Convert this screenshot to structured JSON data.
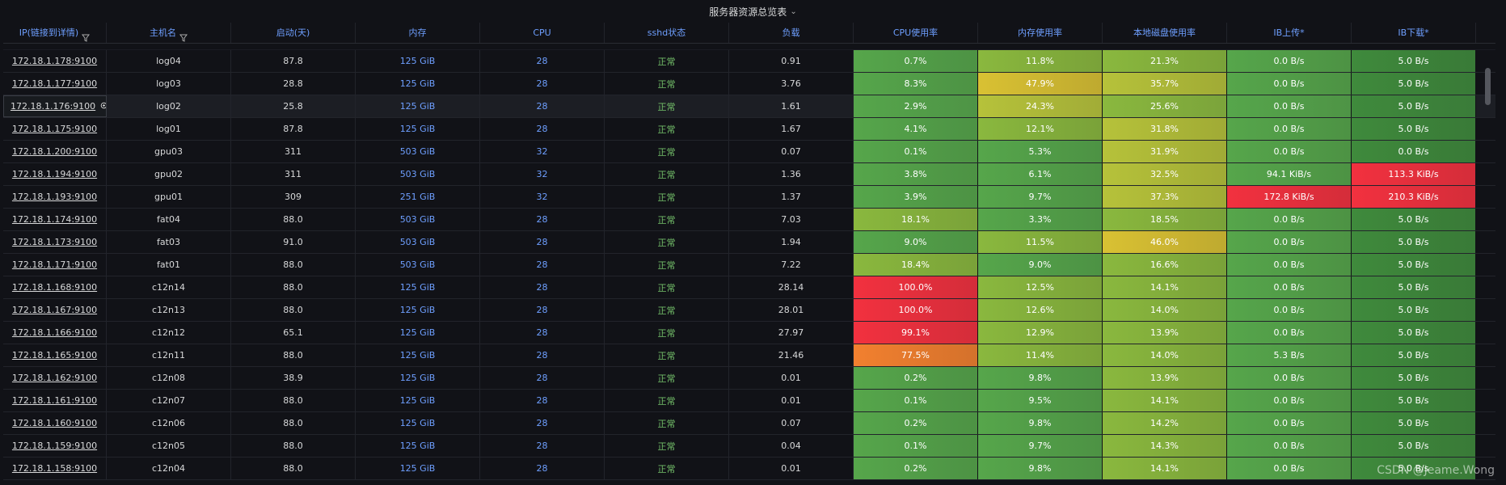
{
  "panel": {
    "title": "服务器资源总览表",
    "watermark": "CSDN @Jeame.Wong"
  },
  "columns": [
    "IP(链接到详情)",
    "主机名",
    "启动(天)",
    "内存",
    "CPU",
    "sshd状态",
    "负载",
    "CPU使用率",
    "内存使用率",
    "本地磁盘使用率",
    "IB上传*",
    "IB下载*"
  ],
  "rows": [
    [
      "172.18.1.178:9100",
      "log04",
      "87.8",
      "125 GiB",
      "28",
      "正常",
      "0.91",
      "0.7%",
      "11.8%",
      "21.3%",
      "0.0 B/s",
      "5.0 B/s"
    ],
    [
      "172.18.1.177:9100",
      "log03",
      "28.8",
      "125 GiB",
      "28",
      "正常",
      "3.76",
      "8.3%",
      "47.9%",
      "35.7%",
      "0.0 B/s",
      "5.0 B/s"
    ],
    [
      "172.18.1.176:9100",
      "log02",
      "25.8",
      "125 GiB",
      "28",
      "正常",
      "1.61",
      "2.9%",
      "24.3%",
      "25.6%",
      "0.0 B/s",
      "5.0 B/s"
    ],
    [
      "172.18.1.175:9100",
      "log01",
      "87.8",
      "125 GiB",
      "28",
      "正常",
      "1.67",
      "4.1%",
      "12.1%",
      "31.8%",
      "0.0 B/s",
      "5.0 B/s"
    ],
    [
      "172.18.1.200:9100",
      "gpu03",
      "311",
      "503 GiB",
      "32",
      "正常",
      "0.07",
      "0.1%",
      "5.3%",
      "31.9%",
      "0.0 B/s",
      "0.0 B/s"
    ],
    [
      "172.18.1.194:9100",
      "gpu02",
      "311",
      "503 GiB",
      "32",
      "正常",
      "1.36",
      "3.8%",
      "6.1%",
      "32.5%",
      "94.1 KiB/s",
      "113.3 KiB/s"
    ],
    [
      "172.18.1.193:9100",
      "gpu01",
      "309",
      "251 GiB",
      "32",
      "正常",
      "1.37",
      "3.9%",
      "9.7%",
      "37.3%",
      "172.8 KiB/s",
      "210.3 KiB/s"
    ],
    [
      "172.18.1.174:9100",
      "fat04",
      "88.0",
      "503 GiB",
      "28",
      "正常",
      "7.03",
      "18.1%",
      "3.3%",
      "18.5%",
      "0.0 B/s",
      "5.0 B/s"
    ],
    [
      "172.18.1.173:9100",
      "fat03",
      "91.0",
      "503 GiB",
      "28",
      "正常",
      "1.94",
      "9.0%",
      "11.5%",
      "46.0%",
      "0.0 B/s",
      "5.0 B/s"
    ],
    [
      "172.18.1.171:9100",
      "fat01",
      "88.0",
      "503 GiB",
      "28",
      "正常",
      "7.22",
      "18.4%",
      "9.0%",
      "16.6%",
      "0.0 B/s",
      "5.0 B/s"
    ],
    [
      "172.18.1.168:9100",
      "c12n14",
      "88.0",
      "125 GiB",
      "28",
      "正常",
      "28.14",
      "100.0%",
      "12.5%",
      "14.1%",
      "0.0 B/s",
      "5.0 B/s"
    ],
    [
      "172.18.1.167:9100",
      "c12n13",
      "88.0",
      "125 GiB",
      "28",
      "正常",
      "28.01",
      "100.0%",
      "12.6%",
      "14.0%",
      "0.0 B/s",
      "5.0 B/s"
    ],
    [
      "172.18.1.166:9100",
      "c12n12",
      "65.1",
      "125 GiB",
      "28",
      "正常",
      "27.97",
      "99.1%",
      "12.9%",
      "13.9%",
      "0.0 B/s",
      "5.0 B/s"
    ],
    [
      "172.18.1.165:9100",
      "c12n11",
      "88.0",
      "125 GiB",
      "28",
      "正常",
      "21.46",
      "77.5%",
      "11.4%",
      "14.0%",
      "5.3 B/s",
      "5.0 B/s"
    ],
    [
      "172.18.1.162:9100",
      "c12n08",
      "38.9",
      "125 GiB",
      "28",
      "正常",
      "0.01",
      "0.2%",
      "9.8%",
      "13.9%",
      "0.0 B/s",
      "5.0 B/s"
    ],
    [
      "172.18.1.161:9100",
      "c12n07",
      "88.0",
      "125 GiB",
      "28",
      "正常",
      "0.01",
      "0.1%",
      "9.5%",
      "14.1%",
      "0.0 B/s",
      "5.0 B/s"
    ],
    [
      "172.18.1.160:9100",
      "c12n06",
      "88.0",
      "125 GiB",
      "28",
      "正常",
      "0.07",
      "0.2%",
      "9.8%",
      "14.2%",
      "0.0 B/s",
      "5.0 B/s"
    ],
    [
      "172.18.1.159:9100",
      "c12n05",
      "88.0",
      "125 GiB",
      "28",
      "正常",
      "0.04",
      "0.1%",
      "9.7%",
      "14.3%",
      "0.0 B/s",
      "5.0 B/s"
    ],
    [
      "172.18.1.158:9100",
      "c12n04",
      "88.0",
      "125 GiB",
      "28",
      "正常",
      "0.01",
      "0.2%",
      "9.8%",
      "14.1%",
      "0.0 B/s",
      "5.0 B/s"
    ]
  ],
  "colors": {
    "green": "#56a64b",
    "light_green": "#8ab83e",
    "yellow_green": "#b6c23a",
    "yellow": "#d9c133",
    "orange": "#f2802f",
    "red": "#f2313f",
    "dark_green": "#3f8a3c"
  }
}
